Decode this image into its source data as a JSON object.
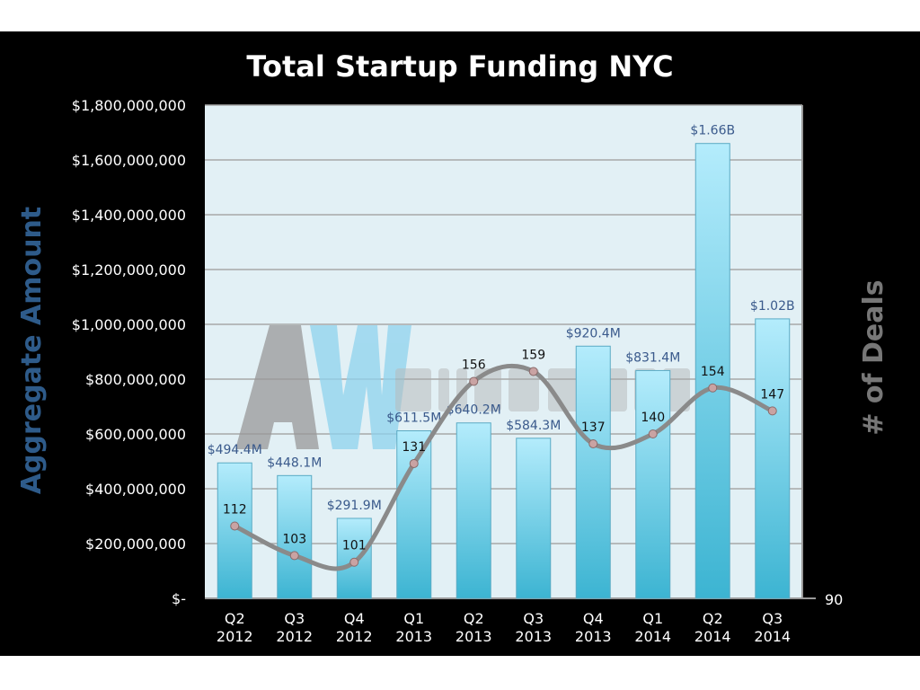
{
  "chart_data": {
    "type": "bar",
    "title": "Total Startup Funding NYC",
    "ylabel": "Aggregate  Amount",
    "y2label": "# of Deals",
    "categories": [
      [
        "Q2",
        "2012"
      ],
      [
        "Q3",
        "2012"
      ],
      [
        "Q4",
        "2012"
      ],
      [
        "Q1",
        "2013"
      ],
      [
        "Q2",
        "2013"
      ],
      [
        "Q3",
        "2013"
      ],
      [
        "Q4",
        "2013"
      ],
      [
        "Q1",
        "2014"
      ],
      [
        "Q2",
        "2014"
      ],
      [
        "Q3",
        "2014"
      ]
    ],
    "ylim": [
      0,
      1800000000
    ],
    "y_ticks": [
      0,
      200000000,
      400000000,
      600000000,
      800000000,
      1000000000,
      1200000000,
      1400000000,
      1600000000,
      1800000000
    ],
    "y_tick_labels": [
      "$-",
      "$200,000,000",
      "$400,000,000",
      "$600,000,000",
      "$800,000,000",
      "$1,000,000,000",
      "$1,200,000,000",
      "$1,400,000,000",
      "$1,600,000,000",
      "$1,800,000,000"
    ],
    "y2lim": [
      90,
      240
    ],
    "y2_tick_labels": [
      "90"
    ],
    "grid": true,
    "series": [
      {
        "name": "Aggregate Amount",
        "type": "bar",
        "values": [
          494400000,
          448100000,
          291900000,
          611500000,
          640200000,
          584300000,
          920400000,
          831400000,
          1660000000,
          1020000000
        ],
        "labels": [
          "$494.4M",
          "$448.1M",
          "$291.9M",
          "$611.5M",
          "$640.2M",
          "$584.3M",
          "$920.4M",
          "$831.4M",
          "$1.66B",
          "$1.02B"
        ]
      },
      {
        "name": "# of Deals",
        "type": "line",
        "axis": "right",
        "values": [
          112,
          103,
          101,
          131,
          156,
          159,
          137,
          140,
          154,
          147
        ]
      }
    ],
    "watermark": "AW AlleyWatch"
  },
  "colors": {
    "bar_top": "#b4ecfc",
    "bar_bottom": "#3cb4d2",
    "line": "#8a8a8a",
    "plot_bg": "#e2f0f5",
    "label": "#3a5a8c",
    "ylabel": "#2e5b8a",
    "y2label": "#777777"
  }
}
